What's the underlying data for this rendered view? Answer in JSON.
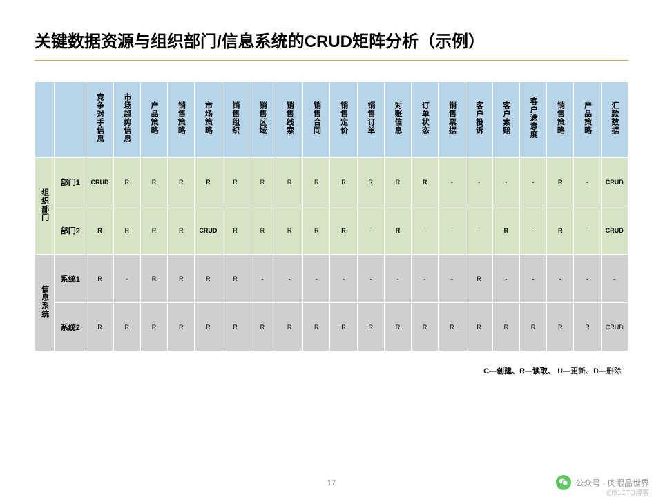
{
  "title": "关键数据资源与组织部门/信息系统的CRUD矩阵分析（示例）",
  "columns": [
    "竞争对手信息",
    "市场趋势信息",
    "产品策略",
    "销售策略",
    "市场策略",
    "销售组织",
    "销售区域",
    "销售线索",
    "销售合同",
    "销售定价",
    "销售订单",
    "对账信息",
    "订单状态",
    "销售票据",
    "客户投诉",
    "客户索赔",
    "客户满意度",
    "销售策略",
    "产品策略",
    "汇款数据"
  ],
  "groups": [
    {
      "label": "组织部门",
      "bg": "green",
      "rows": [
        {
          "label": "部门1",
          "cells": [
            {
              "v": "CRUD",
              "b": true
            },
            {
              "v": "R"
            },
            {
              "v": "R"
            },
            {
              "v": "R"
            },
            {
              "v": "R",
              "b": true
            },
            {
              "v": "R"
            },
            {
              "v": "R"
            },
            {
              "v": "R"
            },
            {
              "v": "R"
            },
            {
              "v": "R"
            },
            {
              "v": "R"
            },
            {
              "v": "R"
            },
            {
              "v": "R",
              "b": true
            },
            {
              "v": "-"
            },
            {
              "v": "-"
            },
            {
              "v": "-"
            },
            {
              "v": "-"
            },
            {
              "v": "R",
              "b": true
            },
            {
              "v": "-"
            },
            {
              "v": "CRUD",
              "b": true
            }
          ]
        },
        {
          "label": "部门2",
          "cells": [
            {
              "v": "R",
              "b": true
            },
            {
              "v": "R"
            },
            {
              "v": "R"
            },
            {
              "v": "R"
            },
            {
              "v": "CRUD",
              "b": true
            },
            {
              "v": "R"
            },
            {
              "v": "R"
            },
            {
              "v": "R"
            },
            {
              "v": "R"
            },
            {
              "v": "R",
              "b": true
            },
            {
              "v": "-"
            },
            {
              "v": "R",
              "b": true
            },
            {
              "v": "-"
            },
            {
              "v": "-"
            },
            {
              "v": "-"
            },
            {
              "v": "R",
              "b": true
            },
            {
              "v": "-"
            },
            {
              "v": "R",
              "b": true
            },
            {
              "v": "-"
            },
            {
              "v": "CRUD",
              "b": true
            }
          ]
        }
      ]
    },
    {
      "label": "信息系统",
      "bg": "gray",
      "rows": [
        {
          "label": "系统1",
          "cells": [
            {
              "v": "R"
            },
            {
              "v": "-"
            },
            {
              "v": "R"
            },
            {
              "v": "R"
            },
            {
              "v": "R"
            },
            {
              "v": "R"
            },
            {
              "v": "-"
            },
            {
              "v": "-"
            },
            {
              "v": "-"
            },
            {
              "v": "-"
            },
            {
              "v": "-"
            },
            {
              "v": "-"
            },
            {
              "v": "-"
            },
            {
              "v": "-"
            },
            {
              "v": "R"
            },
            {
              "v": "-"
            },
            {
              "v": "-"
            },
            {
              "v": "-"
            },
            {
              "v": "-"
            },
            {
              "v": "-"
            }
          ]
        },
        {
          "label": "系统2",
          "cells": [
            {
              "v": "R"
            },
            {
              "v": "R"
            },
            {
              "v": "R"
            },
            {
              "v": "R"
            },
            {
              "v": "R"
            },
            {
              "v": "R"
            },
            {
              "v": "R"
            },
            {
              "v": "R"
            },
            {
              "v": "R"
            },
            {
              "v": "R"
            },
            {
              "v": "R"
            },
            {
              "v": "R"
            },
            {
              "v": "R"
            },
            {
              "v": "R"
            },
            {
              "v": "R"
            },
            {
              "v": "R"
            },
            {
              "v": "R"
            },
            {
              "v": "R"
            },
            {
              "v": "R"
            },
            {
              "v": "CRUD"
            }
          ]
        }
      ]
    }
  ],
  "legend": {
    "bold_part": "C—创建、R—读取、",
    "light_part": " U—更新、D—删除"
  },
  "page_number": "17",
  "watermark": {
    "label": "公众号 · 肉眼品世界",
    "sub": "@51CTO博客"
  },
  "colors": {
    "header_bg": "#b8d4e8",
    "group1_bg": "#d6e3c4",
    "group2_bg": "#cfcfcf",
    "divider": "#d4a05a"
  }
}
